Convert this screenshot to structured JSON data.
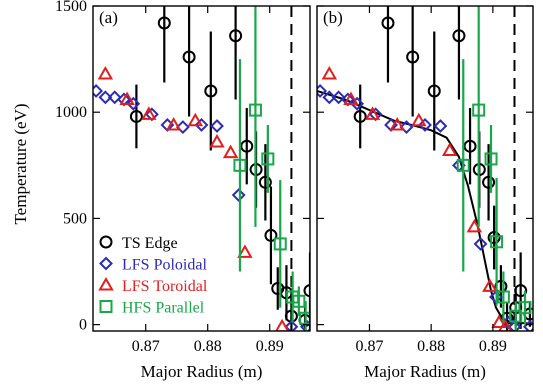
{
  "chart_data": {
    "type": "scatter",
    "ylabel": "Temperature (eV)",
    "ylim": [
      -30,
      1500
    ],
    "y_ticks": [
      0,
      500,
      1000,
      1500
    ],
    "x_ticks": [
      0.87,
      0.88,
      0.89
    ],
    "legend_placement": "bottom-left of panel (a)",
    "colors": {
      "ts": "#000000",
      "lfs_pol": "#2b2bb5",
      "lfs_tor": "#e11f1f",
      "hfs": "#1aa64a",
      "fit": "#000000"
    },
    "panels": [
      {
        "label": "(a)",
        "xlabel": "Major Radius (m)",
        "xlim": [
          0.8615,
          0.8965
        ],
        "vline_x": 0.8935,
        "series": [
          {
            "name": "TS Edge",
            "key": "ts",
            "marker": "circle",
            "points": [
              [
                0.8685,
                980,
                150
              ],
              [
                0.873,
                1420,
                280
              ],
              [
                0.877,
                1260,
                280
              ],
              [
                0.8805,
                1100,
                280
              ],
              [
                0.8845,
                1360,
                300
              ],
              [
                0.8863,
                840,
                180
              ],
              [
                0.8878,
                730,
                180
              ],
              [
                0.8893,
                670,
                180
              ],
              [
                0.8902,
                420,
                230
              ],
              [
                0.8913,
                170,
                100
              ],
              [
                0.8927,
                150,
                130
              ],
              [
                0.8935,
                40,
                130
              ],
              [
                0.8957,
                20,
                90
              ],
              [
                0.8965,
                160,
                180
              ]
            ]
          },
          {
            "name": "LFS Poloidal",
            "key": "lfs_pol",
            "marker": "diamond",
            "points": [
              [
                0.862,
                1100
              ],
              [
                0.8635,
                1070
              ],
              [
                0.865,
                1070
              ],
              [
                0.8665,
                1060
              ],
              [
                0.868,
                1040
              ],
              [
                0.871,
                990
              ],
              [
                0.8735,
                940
              ],
              [
                0.876,
                930
              ],
              [
                0.879,
                940
              ],
              [
                0.8815,
                935
              ],
              [
                0.885,
                610
              ],
              [
                0.8935,
                -10
              ],
              [
                0.896,
                -10
              ]
            ]
          },
          {
            "name": "LFS Toroidal",
            "key": "lfs_tor",
            "marker": "triangle",
            "points": [
              [
                0.8635,
                1180
              ],
              [
                0.867,
                1060
              ],
              [
                0.8705,
                990
              ],
              [
                0.8745,
                940
              ],
              [
                0.878,
                960
              ],
              [
                0.8815,
                860
              ],
              [
                0.8837,
                810
              ],
              [
                0.886,
                340
              ],
              [
                0.892,
                -10
              ]
            ]
          },
          {
            "name": "HFS Parallel",
            "key": "hfs",
            "marker": "square",
            "points": [
              [
                0.8852,
                750,
                500
              ],
              [
                0.8877,
                1010,
                550
              ],
              [
                0.8897,
                780,
                160
              ],
              [
                0.8917,
                380,
                300
              ],
              [
                0.8937,
                130,
                120
              ],
              [
                0.8947,
                110,
                70
              ],
              [
                0.8958,
                30,
                80
              ]
            ]
          }
        ]
      },
      {
        "label": "(b)",
        "xlabel": "Major Radius (m)",
        "xlim": [
          0.8615,
          0.8965
        ],
        "vline_x": 0.8935,
        "series": [
          {
            "name": "TS Edge",
            "key": "ts",
            "marker": "circle",
            "points": [
              [
                0.8685,
                980,
                150
              ],
              [
                0.873,
                1420,
                280
              ],
              [
                0.877,
                1260,
                280
              ],
              [
                0.8805,
                1100,
                280
              ],
              [
                0.8845,
                1360,
                300
              ],
              [
                0.8863,
                840,
                180
              ],
              [
                0.8878,
                730,
                180
              ],
              [
                0.8893,
                670,
                180
              ],
              [
                0.8902,
                410,
                150
              ],
              [
                0.8913,
                180,
                100
              ],
              [
                0.8923,
                30,
                70
              ],
              [
                0.8937,
                80,
                90
              ],
              [
                0.8945,
                160,
                180
              ],
              [
                0.896,
                50,
                60
              ]
            ]
          },
          {
            "name": "LFS Poloidal",
            "key": "lfs_pol",
            "marker": "diamond",
            "points": [
              [
                0.862,
                1100
              ],
              [
                0.8635,
                1070
              ],
              [
                0.865,
                1070
              ],
              [
                0.8665,
                1060
              ],
              [
                0.868,
                1040
              ],
              [
                0.871,
                990
              ],
              [
                0.8735,
                940
              ],
              [
                0.876,
                930
              ],
              [
                0.879,
                940
              ],
              [
                0.8815,
                935
              ],
              [
                0.8845,
                750
              ],
              [
                0.888,
                380
              ],
              [
                0.8905,
                130
              ],
              [
                0.8925,
                10
              ],
              [
                0.8935,
                -10
              ],
              [
                0.896,
                -10
              ]
            ]
          },
          {
            "name": "LFS Toroidal",
            "key": "lfs_tor",
            "marker": "triangle",
            "points": [
              [
                0.8635,
                1180
              ],
              [
                0.867,
                1060
              ],
              [
                0.8705,
                990
              ],
              [
                0.8745,
                940
              ],
              [
                0.878,
                960
              ],
              [
                0.883,
                820
              ],
              [
                0.887,
                460
              ],
              [
                0.8895,
                180
              ],
              [
                0.891,
                10
              ],
              [
                0.892,
                -10
              ]
            ]
          },
          {
            "name": "HFS Parallel",
            "key": "hfs",
            "marker": "square",
            "points": [
              [
                0.8852,
                750,
                500
              ],
              [
                0.8877,
                1010,
                550
              ],
              [
                0.8897,
                780,
                160
              ],
              [
                0.8906,
                390,
                300
              ],
              [
                0.8917,
                130,
                120
              ],
              [
                0.8937,
                40,
                70
              ],
              [
                0.8952,
                80,
                80
              ]
            ]
          }
        ],
        "fit": [
          [
            0.8615,
            1100
          ],
          [
            0.866,
            1060
          ],
          [
            0.87,
            1010
          ],
          [
            0.874,
            960
          ],
          [
            0.8775,
            935
          ],
          [
            0.88,
            915
          ],
          [
            0.8825,
            880
          ],
          [
            0.8845,
            790
          ],
          [
            0.886,
            650
          ],
          [
            0.8875,
            470
          ],
          [
            0.8887,
            300
          ],
          [
            0.8897,
            160
          ],
          [
            0.8905,
            80
          ],
          [
            0.8915,
            30
          ],
          [
            0.893,
            10
          ],
          [
            0.8965,
            5
          ]
        ]
      }
    ]
  }
}
